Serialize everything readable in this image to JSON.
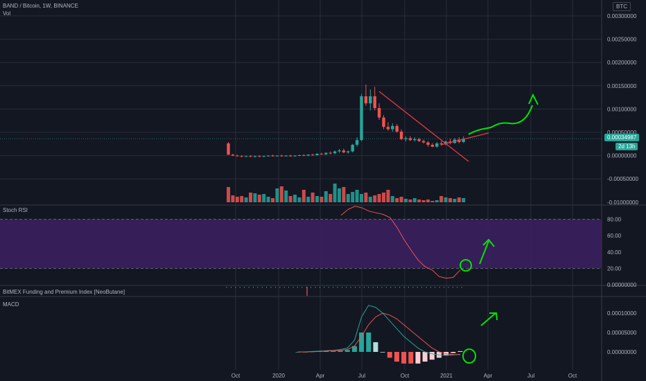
{
  "header": {
    "title": "BAND / Bitcoin, 1W, BINANCE",
    "vol_label": "Vol",
    "currency_badge": "BTC"
  },
  "price_badge": {
    "value": "0.00034987",
    "countdown": "2d 13h"
  },
  "panels": {
    "stoch_label": "Stoch RSI",
    "bitmex_label": "BitMEX Funding and Premium Index [NeoButane]",
    "macd_label": "MACD"
  },
  "colors": {
    "bg": "#131722",
    "grid": "#2a2e39",
    "up": "#26a69a",
    "down": "#ef5350",
    "stoch_band": "#3b1f5e",
    "annotation_green": "#00e600",
    "annotation_red": "#f23645",
    "macd_line": "#26a69a",
    "signal_line": "#ef5350"
  },
  "chart_data": [
    {
      "type": "candlestick",
      "title": "BAND / Bitcoin, 1W, BINANCE",
      "y_ticks": [
        "0.00300000",
        "0.00250000",
        "0.00200000",
        "0.00150000",
        "0.00100000",
        "0.00050000",
        "0.00000000",
        "-0.00050000",
        "-0.01000000"
      ],
      "x_ticks": [
        "Oct",
        "2020",
        "Apr",
        "Jul",
        "Oct",
        "2021",
        "Apr",
        "Jul",
        "Oct"
      ],
      "last_price": 0.00034987,
      "candles": [
        {
          "o": 0.00025,
          "h": 0.00028,
          "l": 1e-05,
          "c": 1e-05
        },
        {
          "o": 1e-05,
          "h": 3e-05,
          "l": -2e-05,
          "c": -1e-05
        },
        {
          "o": -1e-05,
          "h": 1e-05,
          "l": -3e-05,
          "c": -2e-05
        },
        {
          "o": -2e-05,
          "h": 0.0,
          "l": -4e-05,
          "c": -3e-05
        },
        {
          "o": -3e-05,
          "h": -1e-05,
          "l": -4e-05,
          "c": -2e-05
        },
        {
          "o": -2e-05,
          "h": 0.0,
          "l": -4e-05,
          "c": -3e-05
        },
        {
          "o": -3e-05,
          "h": -1e-05,
          "l": -5e-05,
          "c": -2e-05
        },
        {
          "o": -2e-05,
          "h": 0.0,
          "l": -4e-05,
          "c": -3e-05
        },
        {
          "o": -3e-05,
          "h": -1e-05,
          "l": -4e-05,
          "c": -2e-05
        },
        {
          "o": -2e-05,
          "h": 0.0,
          "l": -3e-05,
          "c": -1e-05
        },
        {
          "o": -1e-05,
          "h": 1e-05,
          "l": -3e-05,
          "c": -2e-05
        },
        {
          "o": -2e-05,
          "h": 0.0,
          "l": -3e-05,
          "c": -1e-05
        },
        {
          "o": -1e-05,
          "h": 1e-05,
          "l": -3e-05,
          "c": -2e-05
        },
        {
          "o": -2e-05,
          "h": 0.0,
          "l": -3e-05,
          "c": -1e-05
        },
        {
          "o": -1e-05,
          "h": 1e-05,
          "l": -3e-05,
          "c": -2e-05
        },
        {
          "o": -2e-05,
          "h": 0.0,
          "l": -3e-05,
          "c": -1e-05
        },
        {
          "o": -1e-05,
          "h": 1e-05,
          "l": -2e-05,
          "c": 0.0
        },
        {
          "o": 0.0,
          "h": 2e-05,
          "l": -2e-05,
          "c": -1e-05
        },
        {
          "o": -1e-05,
          "h": 2e-05,
          "l": -2e-05,
          "c": 1e-05
        },
        {
          "o": 1e-05,
          "h": 3e-05,
          "l": -1e-05,
          "c": 0.0
        },
        {
          "o": 0.0,
          "h": 4e-05,
          "l": -1e-05,
          "c": 3e-05
        },
        {
          "o": 3e-05,
          "h": 5e-05,
          "l": 1e-05,
          "c": 2e-05
        },
        {
          "o": 2e-05,
          "h": 6e-05,
          "l": 0.0,
          "c": 5e-05
        },
        {
          "o": 5e-05,
          "h": 8e-05,
          "l": 2e-05,
          "c": 4e-05
        },
        {
          "o": 4e-05,
          "h": 0.0001,
          "l": 2e-05,
          "c": 8e-05
        },
        {
          "o": 8e-05,
          "h": 0.00013,
          "l": 5e-05,
          "c": 0.0001
        },
        {
          "o": 0.0001,
          "h": 0.00014,
          "l": 4e-05,
          "c": 6e-05
        },
        {
          "o": 6e-05,
          "h": 0.0001,
          "l": 3e-05,
          "c": 8e-05
        },
        {
          "o": 8e-05,
          "h": 0.00024,
          "l": 6e-05,
          "c": 0.00022
        },
        {
          "o": 0.00022,
          "h": 0.00038,
          "l": 0.00018,
          "c": 0.00032
        },
        {
          "o": 0.00032,
          "h": 0.0013,
          "l": 0.0003,
          "c": 0.00125
        },
        {
          "o": 0.00125,
          "h": 0.0015,
          "l": 0.00105,
          "c": 0.0011
        },
        {
          "o": 0.0011,
          "h": 0.0014,
          "l": 0.00095,
          "c": 0.00125
        },
        {
          "o": 0.00125,
          "h": 0.00145,
          "l": 0.00095,
          "c": 0.001
        },
        {
          "o": 0.001,
          "h": 0.0011,
          "l": 0.00075,
          "c": 0.0008
        },
        {
          "o": 0.0008,
          "h": 0.00085,
          "l": 0.00055,
          "c": 0.0006
        },
        {
          "o": 0.0006,
          "h": 0.0007,
          "l": 0.00052,
          "c": 0.00055
        },
        {
          "o": 0.00055,
          "h": 0.00068,
          "l": 0.0005,
          "c": 0.00062
        },
        {
          "o": 0.00062,
          "h": 0.00066,
          "l": 0.00048,
          "c": 0.0005
        },
        {
          "o": 0.0005,
          "h": 0.00055,
          "l": 0.00032,
          "c": 0.00034
        },
        {
          "o": 0.00034,
          "h": 0.0004,
          "l": 0.00029,
          "c": 0.00036
        },
        {
          "o": 0.00036,
          "h": 0.0004,
          "l": 0.0003,
          "c": 0.00032
        },
        {
          "o": 0.00032,
          "h": 0.00038,
          "l": 0.00029,
          "c": 0.00034
        },
        {
          "o": 0.00034,
          "h": 0.00037,
          "l": 0.00028,
          "c": 0.0003
        },
        {
          "o": 0.0003,
          "h": 0.00033,
          "l": 0.00025,
          "c": 0.00027
        },
        {
          "o": 0.00027,
          "h": 0.0003,
          "l": 0.00018,
          "c": 0.00022
        },
        {
          "o": 0.00022,
          "h": 0.00026,
          "l": 0.00017,
          "c": 0.00018
        },
        {
          "o": 0.00018,
          "h": 0.00028,
          "l": 0.00016,
          "c": 0.00025
        },
        {
          "o": 0.00025,
          "h": 0.0003,
          "l": 0.0002,
          "c": 0.00023
        },
        {
          "o": 0.00023,
          "h": 0.00031,
          "l": 0.00021,
          "c": 0.00029
        },
        {
          "o": 0.00029,
          "h": 0.00035,
          "l": 0.00023,
          "c": 0.00026
        },
        {
          "o": 0.00026,
          "h": 0.00036,
          "l": 0.00024,
          "c": 0.00033
        },
        {
          "o": 0.00033,
          "h": 0.00038,
          "l": 0.00025,
          "c": 0.00028
        },
        {
          "o": 0.00028,
          "h": 0.0004,
          "l": 0.00026,
          "c": 0.00035
        }
      ],
      "volumes": [
        22,
        10,
        8,
        9,
        7,
        14,
        13,
        11,
        12,
        8,
        6,
        20,
        23,
        17,
        9,
        11,
        7,
        18,
        8,
        14,
        9,
        8,
        16,
        12,
        27,
        20,
        22,
        12,
        15,
        18,
        12,
        14,
        8,
        10,
        12,
        14,
        18,
        9,
        6,
        8,
        5,
        4,
        6,
        4,
        3,
        4,
        2,
        3,
        9,
        7,
        6,
        5,
        7,
        6
      ]
    },
    {
      "type": "line",
      "title": "Stoch RSI",
      "y_ticks": [
        "80.00",
        "60.00",
        "40.00",
        "20.00",
        "0.00000000"
      ],
      "band": [
        20,
        80
      ],
      "values": [
        85,
        92,
        96,
        94,
        90,
        88,
        86,
        82,
        70,
        55,
        42,
        30,
        22,
        18,
        10,
        8,
        9,
        18
      ]
    },
    {
      "type": "bar",
      "title": "BitMEX Funding and Premium Index [NeoButane]"
    },
    {
      "type": "line",
      "title": "MACD",
      "y_ticks": [
        "0.00010000",
        "0.00005000",
        "0.00000000"
      ],
      "series": [
        {
          "values": [
            0,
            0,
            1e-06,
            2e-06,
            3e-06,
            4e-06,
            6e-06,
            1e-05,
            3e-05,
            9e-05,
            0.00012,
            0.000115,
            0.0001,
            8e-05,
            6e-05,
            4e-05,
            2.5e-05,
            1e-05,
            0.0,
            -5e-06,
            -8e-06,
            -9e-06,
            -8e-06,
            -6e-06
          ]
        },
        {
          "values": [
            0,
            0,
            5e-07,
            1e-06,
            2e-06,
            3e-06,
            4e-06,
            6e-06,
            1.5e-05,
            4e-05,
            7e-05,
            9e-05,
            0.0001,
            9.5e-05,
            8.5e-05,
            7e-05,
            5.5e-05,
            4e-05,
            2.5e-05,
            1e-05,
            0.0,
            -5e-06,
            -7e-06,
            -7e-06
          ]
        }
      ],
      "histogram": [
        0,
        0,
        1e-06,
        2e-06,
        2e-06,
        2e-06,
        3e-06,
        5e-06,
        1.5e-05,
        5e-05,
        5e-05,
        2.5e-05,
        0.0,
        -1.5e-05,
        -2.5e-05,
        -3e-05,
        -3e-05,
        -3e-05,
        -2.5e-05,
        -2e-05,
        -1.5e-05,
        -8e-06,
        -3e-06,
        2e-06
      ]
    }
  ]
}
